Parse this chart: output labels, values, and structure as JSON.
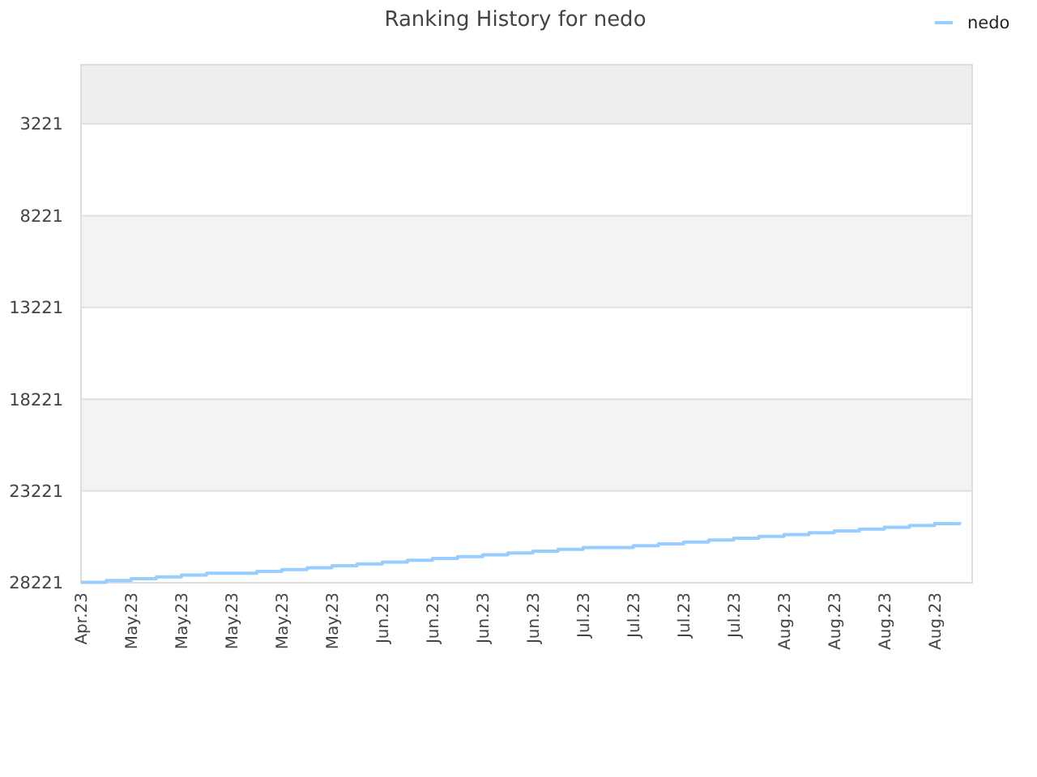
{
  "chart_data": {
    "type": "step",
    "title": "Ranking History for nedo",
    "categories": [
      "Apr.23",
      null,
      "May.23",
      null,
      "May.23",
      null,
      "May.23",
      null,
      "May.23",
      null,
      "May.23",
      null,
      "Jun.23",
      null,
      "Jun.23",
      null,
      "Jun.23",
      null,
      "Jun.23",
      null,
      "Jul.23",
      null,
      "Jul.23",
      null,
      "Jul.23",
      null,
      "Jul.23",
      null,
      "Aug.23",
      null,
      "Aug.23",
      null,
      "Aug.23",
      null,
      "Aug.23",
      null
    ],
    "series": [
      {
        "name": "nedo",
        "color": "#99ccff",
        "values": [
          28200,
          28100,
          28000,
          27900,
          27800,
          27700,
          27700,
          27600,
          27500,
          27400,
          27300,
          27200,
          27100,
          27000,
          26900,
          26800,
          26700,
          26600,
          26500,
          26400,
          26300,
          26300,
          26200,
          26100,
          26000,
          25900,
          25800,
          25700,
          25600,
          25500,
          25400,
          25300,
          25200,
          25100,
          25000,
          24900
        ]
      }
    ],
    "ylim": [
      28221,
      0
    ],
    "yticks": [
      3221,
      8221,
      13221,
      18221,
      23221,
      28221
    ],
    "bands": [
      {
        "axis": "y",
        "from": 0,
        "to": 3221,
        "color": "#eeeeee"
      }
    ],
    "grid": "y",
    "legend": "top right",
    "marker": "none",
    "line_style": "solid"
  }
}
